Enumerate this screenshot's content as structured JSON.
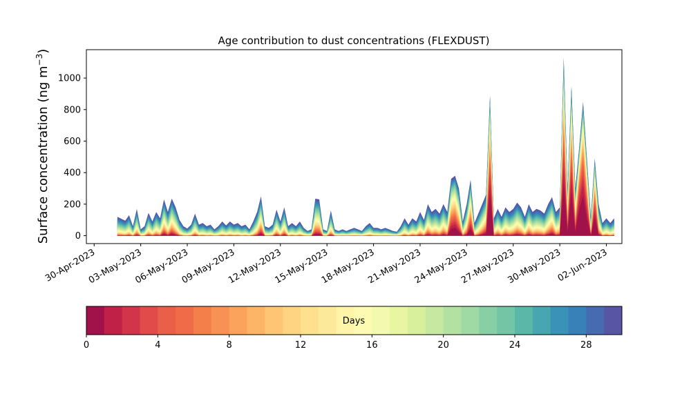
{
  "chart_data": {
    "type": "area",
    "stacked": true,
    "title": "Age contribution to dust concentrations (FLEXDUST)",
    "ylabel_main": "Surface concentration (ng m",
    "ylabel_sup": "−3",
    "ylabel_close": ")",
    "ylim": [
      -50,
      1180
    ],
    "yticks": [
      0,
      200,
      400,
      600,
      800,
      1000
    ],
    "xlim": [
      "2023-04-29T12:00",
      "2023-06-03T00:00"
    ],
    "xticks": [
      "30-Apr-2023",
      "03-May-2023",
      "06-May-2023",
      "09-May-2023",
      "12-May-2023",
      "15-May-2023",
      "18-May-2023",
      "21-May-2023",
      "24-May-2023",
      "27-May-2023",
      "30-May-2023",
      "02-Jun-2023"
    ],
    "xtick_dates": [
      "2023-04-30",
      "2023-05-03",
      "2023-05-06",
      "2023-05-09",
      "2023-05-12",
      "2023-05-15",
      "2023-05-18",
      "2023-05-21",
      "2023-05-24",
      "2023-05-27",
      "2023-05-30",
      "2023-06-02"
    ],
    "total_series": {
      "name": "total",
      "points": [
        [
          "2023-05-01T12:00",
          120
        ],
        [
          "2023-05-02T00:00",
          95
        ],
        [
          "2023-05-02T06:00",
          130
        ],
        [
          "2023-05-02T12:00",
          60
        ],
        [
          "2023-05-02T18:00",
          170
        ],
        [
          "2023-05-03T00:00",
          40
        ],
        [
          "2023-05-03T06:00",
          60
        ],
        [
          "2023-05-03T12:00",
          145
        ],
        [
          "2023-05-03T18:00",
          90
        ],
        [
          "2023-05-04T00:00",
          150
        ],
        [
          "2023-05-04T06:00",
          110
        ],
        [
          "2023-05-04T12:00",
          230
        ],
        [
          "2023-05-04T18:00",
          150
        ],
        [
          "2023-05-05T00:00",
          235
        ],
        [
          "2023-05-05T06:00",
          180
        ],
        [
          "2023-05-05T12:00",
          100
        ],
        [
          "2023-05-05T18:00",
          60
        ],
        [
          "2023-05-06T00:00",
          45
        ],
        [
          "2023-05-06T06:00",
          70
        ],
        [
          "2023-05-06T12:00",
          140
        ],
        [
          "2023-05-06T18:00",
          70
        ],
        [
          "2023-05-07T00:00",
          80
        ],
        [
          "2023-05-07T06:00",
          60
        ],
        [
          "2023-05-07T12:00",
          70
        ],
        [
          "2023-05-07T18:00",
          40
        ],
        [
          "2023-05-08T00:00",
          60
        ],
        [
          "2023-05-08T06:00",
          90
        ],
        [
          "2023-05-08T12:00",
          65
        ],
        [
          "2023-05-08T18:00",
          90
        ],
        [
          "2023-05-09T00:00",
          70
        ],
        [
          "2023-05-09T06:00",
          80
        ],
        [
          "2023-05-09T12:00",
          60
        ],
        [
          "2023-05-09T18:00",
          70
        ],
        [
          "2023-05-10T00:00",
          40
        ],
        [
          "2023-05-10T06:00",
          90
        ],
        [
          "2023-05-10T12:00",
          150
        ],
        [
          "2023-05-10T18:00",
          250
        ],
        [
          "2023-05-11T00:00",
          60
        ],
        [
          "2023-05-11T06:00",
          50
        ],
        [
          "2023-05-11T12:00",
          70
        ],
        [
          "2023-05-11T18:00",
          165
        ],
        [
          "2023-05-12T00:00",
          90
        ],
        [
          "2023-05-12T06:00",
          180
        ],
        [
          "2023-05-12T12:00",
          60
        ],
        [
          "2023-05-12T18:00",
          80
        ],
        [
          "2023-05-13T00:00",
          60
        ],
        [
          "2023-05-13T06:00",
          90
        ],
        [
          "2023-05-13T12:00",
          50
        ],
        [
          "2023-05-13T18:00",
          30
        ],
        [
          "2023-05-14T00:00",
          40
        ],
        [
          "2023-05-14T06:00",
          235
        ],
        [
          "2023-05-14T12:00",
          230
        ],
        [
          "2023-05-14T18:00",
          40
        ],
        [
          "2023-05-15T00:00",
          30
        ],
        [
          "2023-05-15T06:00",
          160
        ],
        [
          "2023-05-15T12:00",
          40
        ],
        [
          "2023-05-15T18:00",
          30
        ],
        [
          "2023-05-16T00:00",
          40
        ],
        [
          "2023-05-16T06:00",
          30
        ],
        [
          "2023-05-16T12:00",
          40
        ],
        [
          "2023-05-16T18:00",
          50
        ],
        [
          "2023-05-17T00:00",
          40
        ],
        [
          "2023-05-17T06:00",
          30
        ],
        [
          "2023-05-17T12:00",
          60
        ],
        [
          "2023-05-17T18:00",
          80
        ],
        [
          "2023-05-18T00:00",
          50
        ],
        [
          "2023-05-18T06:00",
          50
        ],
        [
          "2023-05-18T12:00",
          40
        ],
        [
          "2023-05-18T18:00",
          50
        ],
        [
          "2023-05-19T00:00",
          40
        ],
        [
          "2023-05-19T06:00",
          30
        ],
        [
          "2023-05-19T12:00",
          25
        ],
        [
          "2023-05-19T18:00",
          60
        ],
        [
          "2023-05-20T00:00",
          110
        ],
        [
          "2023-05-20T06:00",
          70
        ],
        [
          "2023-05-20T12:00",
          110
        ],
        [
          "2023-05-20T18:00",
          90
        ],
        [
          "2023-05-21T00:00",
          150
        ],
        [
          "2023-05-21T06:00",
          100
        ],
        [
          "2023-05-21T12:00",
          200
        ],
        [
          "2023-05-21T18:00",
          150
        ],
        [
          "2023-05-22T00:00",
          170
        ],
        [
          "2023-05-22T06:00",
          140
        ],
        [
          "2023-05-22T12:00",
          200
        ],
        [
          "2023-05-22T18:00",
          150
        ],
        [
          "2023-05-23T00:00",
          360
        ],
        [
          "2023-05-23T06:00",
          380
        ],
        [
          "2023-05-23T12:00",
          300
        ],
        [
          "2023-05-23T18:00",
          90
        ],
        [
          "2023-05-24T00:00",
          200
        ],
        [
          "2023-05-24T06:00",
          355
        ],
        [
          "2023-05-24T12:00",
          80
        ],
        [
          "2023-05-24T18:00",
          140
        ],
        [
          "2023-05-25T00:00",
          200
        ],
        [
          "2023-05-25T06:00",
          260
        ],
        [
          "2023-05-25T12:00",
          890
        ],
        [
          "2023-05-25T18:00",
          110
        ],
        [
          "2023-05-26T00:00",
          170
        ],
        [
          "2023-05-26T06:00",
          120
        ],
        [
          "2023-05-26T12:00",
          180
        ],
        [
          "2023-05-26T18:00",
          150
        ],
        [
          "2023-05-27T00:00",
          170
        ],
        [
          "2023-05-27T06:00",
          210
        ],
        [
          "2023-05-27T12:00",
          180
        ],
        [
          "2023-05-27T18:00",
          120
        ],
        [
          "2023-05-28T00:00",
          200
        ],
        [
          "2023-05-28T06:00",
          150
        ],
        [
          "2023-05-28T12:00",
          170
        ],
        [
          "2023-05-28T18:00",
          160
        ],
        [
          "2023-05-29T00:00",
          140
        ],
        [
          "2023-05-29T06:00",
          200
        ],
        [
          "2023-05-29T12:00",
          245
        ],
        [
          "2023-05-29T18:00",
          150
        ],
        [
          "2023-05-30T00:00",
          180
        ],
        [
          "2023-05-30T06:00",
          1130
        ],
        [
          "2023-05-30T12:00",
          300
        ],
        [
          "2023-05-30T18:00",
          950
        ],
        [
          "2023-05-31T00:00",
          300
        ],
        [
          "2023-05-31T06:00",
          560
        ],
        [
          "2023-05-31T12:00",
          850
        ],
        [
          "2023-05-31T18:00",
          480
        ],
        [
          "2023-06-01T00:00",
          120
        ],
        [
          "2023-06-01T06:00",
          490
        ],
        [
          "2023-06-01T12:00",
          200
        ],
        [
          "2023-06-01T18:00",
          80
        ],
        [
          "2023-06-02T00:00",
          110
        ],
        [
          "2023-06-02T06:00",
          80
        ],
        [
          "2023-06-02T12:00",
          110
        ]
      ]
    },
    "age_bins_days": [
      0,
      1,
      2,
      3,
      4,
      5,
      6,
      7,
      8,
      9,
      10,
      11,
      12,
      13,
      14,
      15,
      16,
      17,
      18,
      19,
      20,
      21,
      22,
      23,
      24,
      25,
      26,
      27,
      28,
      29,
      30
    ],
    "band_colors": [
      "#a2124a",
      "#bf2147",
      "#d2354a",
      "#e14c4a",
      "#ea5f48",
      "#f06b47",
      "#f57f4b",
      "#f89254",
      "#fba35d",
      "#fcb466",
      "#fdc574",
      "#fed382",
      "#fee08e",
      "#fde99a",
      "#fff4a8",
      "#fdfbb1",
      "#f3fab0",
      "#e8f6a1",
      "#d8ef9c",
      "#c7e8a0",
      "#b3e1a2",
      "#9fd9a4",
      "#88cfa5",
      "#72c6a6",
      "#5bb7a8",
      "#48a6b0",
      "#3a92b8",
      "#3880b8",
      "#466bb0",
      "#5755a4"
    ],
    "colorbar": {
      "label": "Days",
      "range": [
        0,
        30
      ],
      "ticks": [
        0,
        4,
        8,
        12,
        16,
        20,
        24,
        28
      ]
    },
    "grid": false,
    "legend": "colorbar below plot"
  }
}
